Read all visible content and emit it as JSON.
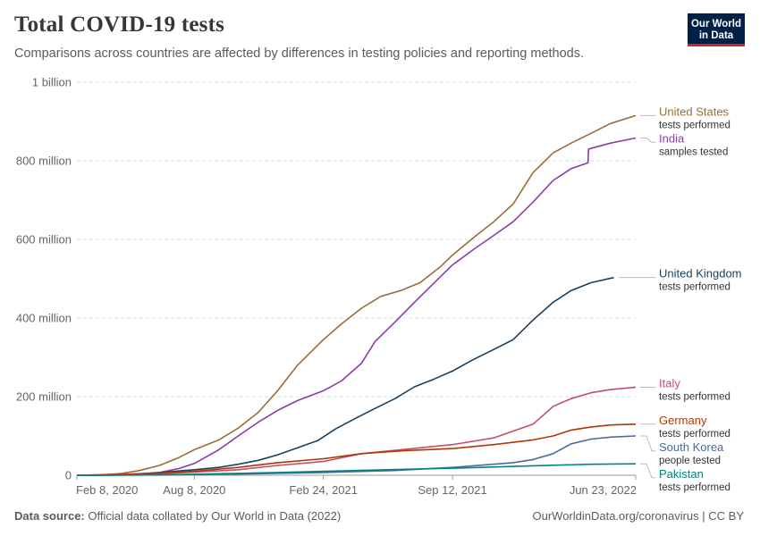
{
  "header": {
    "title": "Total COVID-19 tests",
    "subtitle": "Comparisons across countries are affected by differences in testing policies and reporting methods.",
    "logo_line1": "Our World",
    "logo_line2": "in Data"
  },
  "footer": {
    "source_label": "Data source:",
    "source_text": "Official data collated by Our World in Data (2022)",
    "right_text": "OurWorldinData.org/coronavirus | CC BY"
  },
  "chart_data": {
    "type": "line",
    "title": "Total COVID-19 tests",
    "xlim": [
      "2020-02-08",
      "2022-06-23"
    ],
    "ylim": [
      0,
      1000000000
    ],
    "grid": true,
    "legend": "right, inline labels",
    "x_ticks": [
      {
        "date": "2020-02-08",
        "label": "Feb 8, 2020"
      },
      {
        "date": "2020-08-08",
        "label": "Aug 8, 2020"
      },
      {
        "date": "2021-02-24",
        "label": "Feb 24, 2021"
      },
      {
        "date": "2021-09-12",
        "label": "Sep 12, 2021"
      },
      {
        "date": "2022-06-23",
        "label": "Jun 23, 2022"
      }
    ],
    "y_ticks": [
      {
        "value": 0,
        "label": "0"
      },
      {
        "value": 200000000,
        "label": "200 million"
      },
      {
        "value": 400000000,
        "label": "400 million"
      },
      {
        "value": 600000000,
        "label": "600 million"
      },
      {
        "value": 800000000,
        "label": "800 million"
      },
      {
        "value": 1000000000,
        "label": "1 billion"
      }
    ],
    "series": [
      {
        "name": "United States",
        "unit": "tests performed",
        "color": "#9a6d3a",
        "points": [
          [
            "2020-02-08",
            0
          ],
          [
            "2020-03-15",
            1000000
          ],
          [
            "2020-04-15",
            4000000
          ],
          [
            "2020-05-15",
            12000000
          ],
          [
            "2020-06-15",
            25000000
          ],
          [
            "2020-07-15",
            45000000
          ],
          [
            "2020-08-08",
            65000000
          ],
          [
            "2020-09-15",
            90000000
          ],
          [
            "2020-10-15",
            120000000
          ],
          [
            "2020-11-15",
            160000000
          ],
          [
            "2020-12-15",
            215000000
          ],
          [
            "2021-01-15",
            280000000
          ],
          [
            "2021-02-24",
            345000000
          ],
          [
            "2021-03-24",
            385000000
          ],
          [
            "2021-04-24",
            425000000
          ],
          [
            "2021-05-24",
            455000000
          ],
          [
            "2021-06-24",
            470000000
          ],
          [
            "2021-07-24",
            490000000
          ],
          [
            "2021-08-24",
            530000000
          ],
          [
            "2021-09-12",
            560000000
          ],
          [
            "2021-10-15",
            605000000
          ],
          [
            "2021-11-15",
            645000000
          ],
          [
            "2021-12-15",
            690000000
          ],
          [
            "2022-01-15",
            770000000
          ],
          [
            "2022-02-15",
            820000000
          ],
          [
            "2022-03-15",
            845000000
          ],
          [
            "2022-04-15",
            870000000
          ],
          [
            "2022-05-15",
            895000000
          ],
          [
            "2022-06-23",
            915000000
          ]
        ]
      },
      {
        "name": "India",
        "unit": "samples tested",
        "color": "#883da9",
        "points": [
          [
            "2020-02-08",
            0
          ],
          [
            "2020-03-15",
            0
          ],
          [
            "2020-04-15",
            1000000
          ],
          [
            "2020-05-15",
            3000000
          ],
          [
            "2020-06-15",
            7000000
          ],
          [
            "2020-07-15",
            17000000
          ],
          [
            "2020-08-08",
            30000000
          ],
          [
            "2020-09-15",
            65000000
          ],
          [
            "2020-10-15",
            100000000
          ],
          [
            "2020-11-15",
            135000000
          ],
          [
            "2020-12-15",
            165000000
          ],
          [
            "2021-01-15",
            190000000
          ],
          [
            "2021-02-24",
            215000000
          ],
          [
            "2021-03-24",
            240000000
          ],
          [
            "2021-04-24",
            285000000
          ],
          [
            "2021-05-15",
            340000000
          ],
          [
            "2021-06-15",
            390000000
          ],
          [
            "2021-07-15",
            440000000
          ],
          [
            "2021-08-15",
            490000000
          ],
          [
            "2021-09-12",
            535000000
          ],
          [
            "2021-10-15",
            575000000
          ],
          [
            "2021-11-15",
            610000000
          ],
          [
            "2021-12-15",
            645000000
          ],
          [
            "2022-01-15",
            695000000
          ],
          [
            "2022-02-15",
            750000000
          ],
          [
            "2022-03-15",
            780000000
          ],
          [
            "2022-04-10",
            795000000
          ],
          [
            "2022-04-11",
            830000000
          ],
          [
            "2022-05-15",
            845000000
          ],
          [
            "2022-06-23",
            858000000
          ]
        ]
      },
      {
        "name": "United Kingdom",
        "unit": "tests performed",
        "color": "#18405f",
        "points": [
          [
            "2020-02-08",
            0
          ],
          [
            "2020-04-15",
            500000
          ],
          [
            "2020-06-15",
            7000000
          ],
          [
            "2020-08-08",
            14000000
          ],
          [
            "2020-09-15",
            20000000
          ],
          [
            "2020-10-15",
            28000000
          ],
          [
            "2020-11-15",
            38000000
          ],
          [
            "2020-12-15",
            52000000
          ],
          [
            "2021-01-15",
            70000000
          ],
          [
            "2021-02-15",
            88000000
          ],
          [
            "2021-03-15",
            118000000
          ],
          [
            "2021-04-15",
            145000000
          ],
          [
            "2021-05-15",
            170000000
          ],
          [
            "2021-06-15",
            195000000
          ],
          [
            "2021-07-15",
            225000000
          ],
          [
            "2021-08-15",
            245000000
          ],
          [
            "2021-09-12",
            265000000
          ],
          [
            "2021-10-15",
            295000000
          ],
          [
            "2021-11-15",
            320000000
          ],
          [
            "2021-12-15",
            345000000
          ],
          [
            "2022-01-15",
            395000000
          ],
          [
            "2022-02-15",
            440000000
          ],
          [
            "2022-03-15",
            470000000
          ],
          [
            "2022-04-15",
            490000000
          ],
          [
            "2022-05-20",
            503000000
          ]
        ]
      },
      {
        "name": "Italy",
        "unit": "tests performed",
        "color": "#c15065",
        "points": [
          [
            "2020-02-08",
            0
          ],
          [
            "2020-04-15",
            1000000
          ],
          [
            "2020-06-15",
            4000000
          ],
          [
            "2020-08-08",
            8000000
          ],
          [
            "2020-10-15",
            14000000
          ],
          [
            "2020-12-15",
            25000000
          ],
          [
            "2021-02-24",
            35000000
          ],
          [
            "2021-04-24",
            55000000
          ],
          [
            "2021-06-24",
            65000000
          ],
          [
            "2021-09-12",
            78000000
          ],
          [
            "2021-11-15",
            95000000
          ],
          [
            "2022-01-15",
            130000000
          ],
          [
            "2022-02-15",
            175000000
          ],
          [
            "2022-03-15",
            195000000
          ],
          [
            "2022-04-15",
            210000000
          ],
          [
            "2022-05-15",
            218000000
          ],
          [
            "2022-06-23",
            224000000
          ]
        ]
      },
      {
        "name": "Germany",
        "unit": "tests performed",
        "color": "#b13507",
        "points": [
          [
            "2020-02-08",
            0
          ],
          [
            "2020-04-15",
            2000000
          ],
          [
            "2020-06-15",
            6000000
          ],
          [
            "2020-08-08",
            10000000
          ],
          [
            "2020-10-15",
            20000000
          ],
          [
            "2020-12-15",
            32000000
          ],
          [
            "2021-02-24",
            42000000
          ],
          [
            "2021-04-24",
            55000000
          ],
          [
            "2021-06-24",
            62000000
          ],
          [
            "2021-09-12",
            68000000
          ],
          [
            "2021-11-15",
            78000000
          ],
          [
            "2022-01-15",
            90000000
          ],
          [
            "2022-02-15",
            100000000
          ],
          [
            "2022-03-15",
            115000000
          ],
          [
            "2022-04-15",
            123000000
          ],
          [
            "2022-05-15",
            128000000
          ],
          [
            "2022-06-23",
            130000000
          ]
        ]
      },
      {
        "name": "South Korea",
        "unit": "people tested",
        "color": "#4c6a9c",
        "points": [
          [
            "2020-02-08",
            0
          ],
          [
            "2020-06-15",
            1000000
          ],
          [
            "2020-10-15",
            3000000
          ],
          [
            "2021-02-24",
            7000000
          ],
          [
            "2021-06-15",
            12000000
          ],
          [
            "2021-09-12",
            20000000
          ],
          [
            "2021-12-15",
            32000000
          ],
          [
            "2022-01-15",
            40000000
          ],
          [
            "2022-02-15",
            55000000
          ],
          [
            "2022-03-15",
            80000000
          ],
          [
            "2022-04-15",
            92000000
          ],
          [
            "2022-05-15",
            97000000
          ],
          [
            "2022-06-23",
            100000000
          ]
        ]
      },
      {
        "name": "Pakistan",
        "unit": "tests performed",
        "color": "#00847e",
        "points": [
          [
            "2020-02-08",
            0
          ],
          [
            "2020-05-15",
            500000
          ],
          [
            "2020-08-08",
            2500000
          ],
          [
            "2020-12-15",
            7000000
          ],
          [
            "2021-04-15",
            12000000
          ],
          [
            "2021-09-12",
            18000000
          ],
          [
            "2022-01-15",
            24000000
          ],
          [
            "2022-04-15",
            28000000
          ],
          [
            "2022-06-23",
            29000000
          ]
        ]
      }
    ]
  }
}
